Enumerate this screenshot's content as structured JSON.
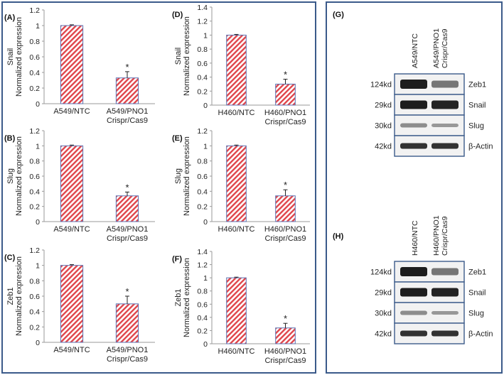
{
  "chart_data": [
    {
      "type": "bar",
      "panel": "(A)",
      "ylabel_gene": "Snail",
      "ylabel": "Normalized expression",
      "categories": [
        "A549/NTC",
        "A549/PNO1 Crispr/Cas9"
      ],
      "values": [
        1.0,
        0.33
      ],
      "errors": [
        0.01,
        0.08
      ],
      "significance": [
        "",
        "*"
      ],
      "ylim": [
        0,
        1.2
      ],
      "yticks": [
        "0",
        "0.2",
        "0.4",
        "0.6",
        "0.8",
        "1",
        "1.2"
      ]
    },
    {
      "type": "bar",
      "panel": "(B)",
      "ylabel_gene": "Slug",
      "ylabel": "Normalized expression",
      "categories": [
        "A549/NTC",
        "A549/PNO1 Crispr/Cas9"
      ],
      "values": [
        1.0,
        0.34
      ],
      "errors": [
        0.01,
        0.05
      ],
      "significance": [
        "",
        "*"
      ],
      "ylim": [
        0,
        1.2
      ],
      "yticks": [
        "0",
        "0.2",
        "0.4",
        "0.6",
        "0.8",
        "1",
        "1.2"
      ]
    },
    {
      "type": "bar",
      "panel": "(C)",
      "ylabel_gene": "Zeb1",
      "ylabel": "Normalized expression",
      "categories": [
        "A549/NTC",
        "A549/PNO1 Crispr/Cas9"
      ],
      "values": [
        1.0,
        0.5
      ],
      "errors": [
        0.01,
        0.1
      ],
      "significance": [
        "",
        "*"
      ],
      "ylim": [
        0,
        1.2
      ],
      "yticks": [
        "0",
        "0.2",
        "0.4",
        "0.6",
        "0.8",
        "1",
        "1.2"
      ]
    },
    {
      "type": "bar",
      "panel": "(D)",
      "ylabel_gene": "Snail",
      "ylabel": "Normalized expression",
      "categories": [
        "H460/NTC",
        "H460/PNO1 Crispr/Cas9"
      ],
      "values": [
        1.0,
        0.3
      ],
      "errors": [
        0.01,
        0.07
      ],
      "significance": [
        "",
        "*"
      ],
      "ylim": [
        0,
        1.4
      ],
      "yticks": [
        "0",
        "0.2",
        "0.4",
        "0.6",
        "0.8",
        "1",
        "1.2",
        "1.4"
      ]
    },
    {
      "type": "bar",
      "panel": "(E)",
      "ylabel_gene": "Slug",
      "ylabel": "Normalized expression",
      "categories": [
        "H460/NTC",
        "H460/PNO1 Crispr/Cas9"
      ],
      "values": [
        1.0,
        0.34
      ],
      "errors": [
        0.01,
        0.08
      ],
      "significance": [
        "",
        "*"
      ],
      "ylim": [
        0,
        1.2
      ],
      "yticks": [
        "0",
        "0.2",
        "0.4",
        "0.6",
        "0.8",
        "1",
        "1.2"
      ]
    },
    {
      "type": "bar",
      "panel": "(F)",
      "ylabel_gene": "Zeb1",
      "ylabel": "Normalized expression",
      "categories": [
        "H460/NTC",
        "H460/PNO1 Crispr/Cas9"
      ],
      "values": [
        1.0,
        0.24
      ],
      "errors": [
        0.01,
        0.07
      ],
      "significance": [
        "",
        "*"
      ],
      "ylim": [
        0,
        1.4
      ],
      "yticks": [
        "0",
        "0.2",
        "0.4",
        "0.6",
        "0.8",
        "1",
        "1.2",
        "1.4"
      ]
    }
  ],
  "blots": [
    {
      "panel": "(G)",
      "lanes": [
        "A549/NTC",
        "A549/PNO1 Crispr/Cas9"
      ],
      "rows": [
        {
          "size": "124kd",
          "protein": "Zeb1"
        },
        {
          "size": "29kd",
          "protein": "Snail"
        },
        {
          "size": "30kd",
          "protein": "Slug"
        },
        {
          "size": "42kd",
          "protein": "β-Actin"
        }
      ]
    },
    {
      "panel": "(H)",
      "lanes": [
        "H460/NTC",
        "H460/PNO1 Crispr/Cas9"
      ],
      "rows": [
        {
          "size": "124kd",
          "protein": "Zeb1"
        },
        {
          "size": "29kd",
          "protein": "Snail"
        },
        {
          "size": "30kd",
          "protein": "Slug"
        },
        {
          "size": "42kd",
          "protein": "β-Actin"
        }
      ]
    }
  ],
  "colors": {
    "bar_stripe": "#e0454b",
    "bar_edge": "#5b6fb0",
    "frame": "#3b5a8a",
    "axis": "#9a9a9a"
  }
}
